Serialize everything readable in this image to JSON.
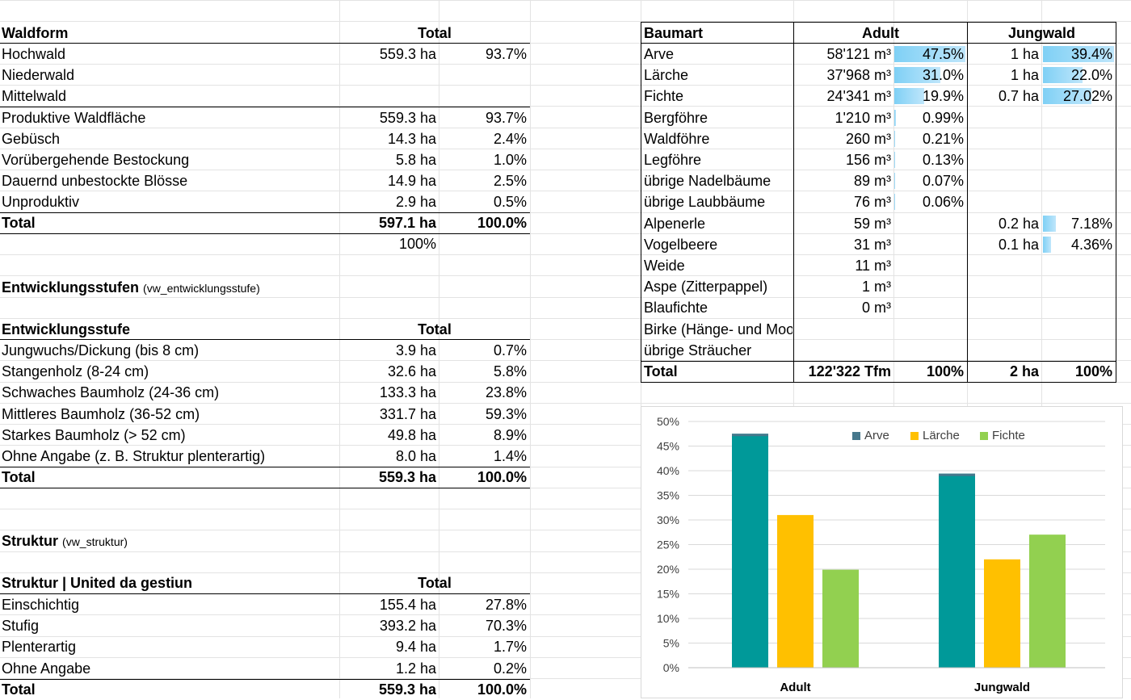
{
  "waldform": {
    "header": {
      "label": "Waldform",
      "total": "Total"
    },
    "rows": [
      {
        "label": "Hochwald",
        "ha": "559.3 ha",
        "pct": "93.7%"
      },
      {
        "label": "Niederwald",
        "ha": "",
        "pct": ""
      },
      {
        "label": "Mittelwald",
        "ha": "",
        "pct": ""
      },
      {
        "label": "Produktive Waldfläche",
        "ha": "559.3 ha",
        "pct": "93.7%"
      },
      {
        "label": "Gebüsch",
        "ha": "14.3 ha",
        "pct": "2.4%"
      },
      {
        "label": "Vorübergehende Bestockung",
        "ha": "5.8 ha",
        "pct": "1.0%"
      },
      {
        "label": "Dauernd unbestockte Blösse",
        "ha": "14.9 ha",
        "pct": "2.5%"
      },
      {
        "label": "Unproduktiv",
        "ha": "2.9 ha",
        "pct": "0.5%"
      }
    ],
    "total": {
      "label": "Total",
      "ha": "597.1 ha",
      "pct": "100.0%"
    },
    "extra": "100%"
  },
  "entwicklung": {
    "section_title": "Entwicklungsstufen",
    "section_sub": "(vw_entwicklungsstufe)",
    "header": {
      "label": "Entwicklungsstufe",
      "total": "Total"
    },
    "rows": [
      {
        "label": "Jungwuchs/Dickung (bis 8 cm)",
        "ha": "3.9 ha",
        "pct": "0.7%"
      },
      {
        "label": "Stangenholz (8-24 cm)",
        "ha": "32.6 ha",
        "pct": "5.8%"
      },
      {
        "label": "Schwaches Baumholz (24-36 cm)",
        "ha": "133.3 ha",
        "pct": "23.8%"
      },
      {
        "label": "Mittleres Baumholz (36-52 cm)",
        "ha": "331.7 ha",
        "pct": "59.3%"
      },
      {
        "label": "Starkes Baumholz (> 52 cm)",
        "ha": "49.8 ha",
        "pct": "8.9%"
      },
      {
        "label": "Ohne Angabe (z. B. Struktur plenterartig)",
        "ha": "8.0 ha",
        "pct": "1.4%"
      }
    ],
    "total": {
      "label": "Total",
      "ha": "559.3 ha",
      "pct": "100.0%"
    }
  },
  "struktur": {
    "section_title": "Struktur",
    "section_sub": "(vw_struktur)",
    "header": {
      "label": "Struktur | United da gestiun",
      "total": "Total"
    },
    "rows": [
      {
        "label": "Einschichtig",
        "ha": "155.4 ha",
        "pct": "27.8%"
      },
      {
        "label": "Stufig",
        "ha": "393.2 ha",
        "pct": "70.3%"
      },
      {
        "label": "Plenterartig",
        "ha": "9.4 ha",
        "pct": "1.7%"
      },
      {
        "label": "Ohne Angabe",
        "ha": "1.2 ha",
        "pct": "0.2%"
      }
    ],
    "total": {
      "label": "Total",
      "ha": "559.3 ha",
      "pct": "100.0%"
    }
  },
  "baumart": {
    "header": {
      "label": "Baumart",
      "adult": "Adult",
      "jungwald": "Jungwald"
    },
    "rows": [
      {
        "label": "Arve",
        "vol": "58'121 m³",
        "pct": "47.5%",
        "pct_value": 47.5,
        "jw": "1 ha",
        "jw_pct": "39.4%",
        "jw_value": 39.4
      },
      {
        "label": "Lärche",
        "vol": "37'968 m³",
        "pct": "31.0%",
        "pct_value": 31.0,
        "jw": "1 ha",
        "jw_pct": "22.0%",
        "jw_value": 22.0
      },
      {
        "label": "Fichte",
        "vol": "24'341 m³",
        "pct": "19.9%",
        "pct_value": 19.9,
        "jw": "0.7 ha",
        "jw_pct": "27.02%",
        "jw_value": 27.02
      },
      {
        "label": "Bergföhre",
        "vol": "1'210 m³",
        "pct": "0.99%",
        "pct_value": 0.99,
        "jw": "",
        "jw_pct": "",
        "jw_value": 0
      },
      {
        "label": "Waldföhre",
        "vol": "260 m³",
        "pct": "0.21%",
        "pct_value": 0.21,
        "jw": "",
        "jw_pct": "",
        "jw_value": 0
      },
      {
        "label": "Legföhre",
        "vol": "156 m³",
        "pct": "0.13%",
        "pct_value": 0.13,
        "jw": "",
        "jw_pct": "",
        "jw_value": 0
      },
      {
        "label": "übrige Nadelbäume",
        "vol": "89 m³",
        "pct": "0.07%",
        "pct_value": 0.07,
        "jw": "",
        "jw_pct": "",
        "jw_value": 0
      },
      {
        "label": "übrige Laubbäume",
        "vol": "76 m³",
        "pct": "0.06%",
        "pct_value": 0.06,
        "jw": "",
        "jw_pct": "",
        "jw_value": 0
      },
      {
        "label": "Alpenerle",
        "vol": "59 m³",
        "pct": "",
        "pct_value": 0,
        "jw": "0.2 ha",
        "jw_pct": "7.18%",
        "jw_value": 7.18
      },
      {
        "label": "Vogelbeere",
        "vol": "31 m³",
        "pct": "",
        "pct_value": 0,
        "jw": "0.1 ha",
        "jw_pct": "4.36%",
        "jw_value": 4.36
      },
      {
        "label": "Weide",
        "vol": "11 m³",
        "pct": "",
        "pct_value": 0,
        "jw": "",
        "jw_pct": "",
        "jw_value": 0
      },
      {
        "label": "Aspe (Zitterpappel)",
        "vol": "1 m³",
        "pct": "",
        "pct_value": 0,
        "jw": "",
        "jw_pct": "",
        "jw_value": 0
      },
      {
        "label": "Blaufichte",
        "vol": "0 m³",
        "pct": "",
        "pct_value": 0,
        "jw": "",
        "jw_pct": "",
        "jw_value": 0
      },
      {
        "label": "Birke (Hänge- und Moorbirke)",
        "vol": "",
        "pct": "",
        "pct_value": 0,
        "jw": "",
        "jw_pct": "",
        "jw_value": 0
      },
      {
        "label": "übrige Sträucher",
        "vol": "",
        "pct": "",
        "pct_value": 0,
        "jw": "",
        "jw_pct": "",
        "jw_value": 0
      }
    ],
    "total": {
      "label": "Total",
      "vol": "122'322 Tfm",
      "pct": "100%",
      "jw": "2 ha",
      "jw_pct": "100%"
    }
  },
  "colors": {
    "arve": "#009999",
    "larche": "#ffc000",
    "fichte": "#92d050",
    "databar": "#7fd0f5"
  },
  "chart_data": {
    "type": "bar",
    "categories": [
      "Adult",
      "Jungwald"
    ],
    "series": [
      {
        "name": "Arve",
        "values": [
          47.5,
          39.4
        ]
      },
      {
        "name": "Lärche",
        "values": [
          31.0,
          22.0
        ]
      },
      {
        "name": "Fichte",
        "values": [
          19.9,
          27.02
        ]
      }
    ],
    "yticks": [
      "0%",
      "5%",
      "10%",
      "15%",
      "20%",
      "25%",
      "30%",
      "35%",
      "40%",
      "45%",
      "50%"
    ],
    "ylim": [
      0,
      50
    ],
    "legend_position": "top-right",
    "title": "",
    "xlabel": "",
    "ylabel": ""
  }
}
